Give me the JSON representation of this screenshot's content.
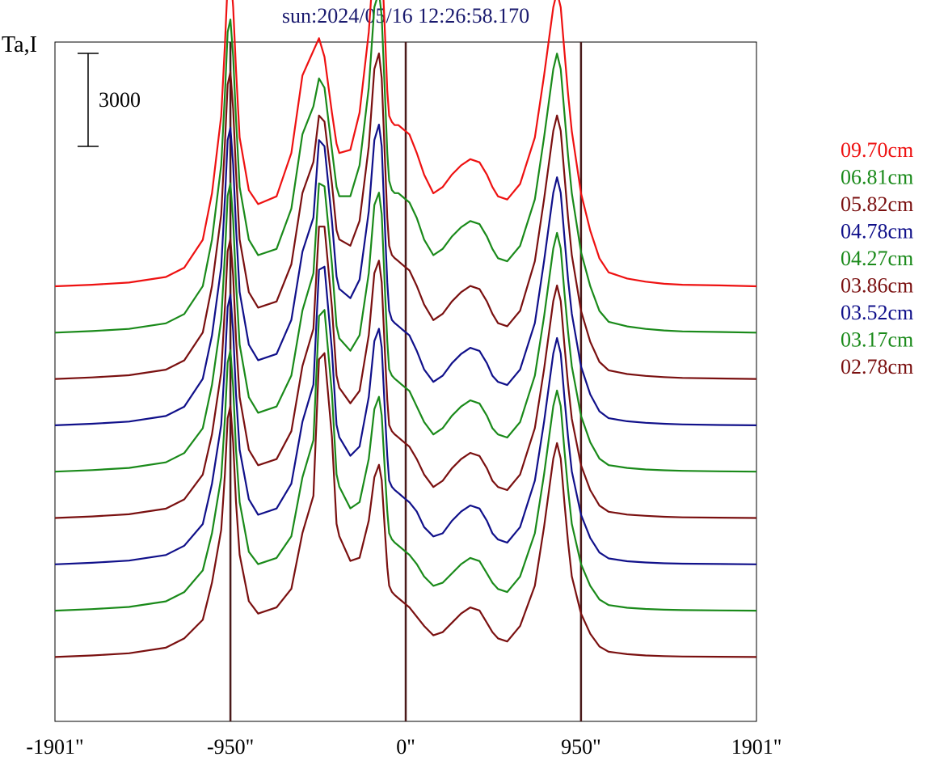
{
  "chart_data": {
    "type": "line",
    "title": "sun:2024/05/16 12:26:58.170",
    "ylabel": "Ta,I",
    "scale_bar_label": "3000",
    "x_ticks": [
      "-1901\"",
      "-950\"",
      "0\"",
      "950\"",
      "1901\""
    ],
    "x_range": [
      -1901,
      1901
    ],
    "x_guides": [
      -950,
      0,
      950
    ],
    "x": [
      -1901,
      -1700,
      -1500,
      -1300,
      -1200,
      -1100,
      -1050,
      -1000,
      -980,
      -965,
      -950,
      -935,
      -920,
      -900,
      -850,
      -800,
      -700,
      -620,
      -560,
      -500,
      -470,
      -440,
      -400,
      -375,
      -360,
      -300,
      -250,
      -200,
      -170,
      -145,
      -130,
      -110,
      -100,
      -90,
      -75,
      -60,
      -40,
      -20,
      0,
      20,
      60,
      100,
      150,
      200,
      250,
      300,
      350,
      400,
      440,
      470,
      500,
      550,
      620,
      700,
      750,
      800,
      820,
      840,
      860,
      880,
      900,
      950,
      1000,
      1050,
      1100,
      1200,
      1300,
      1400,
      1500,
      1700,
      1901
    ],
    "series": [
      {
        "name": "09.70cm",
        "color": "#ee1111",
        "values": [
          0,
          50,
          120,
          300,
          600,
          1500,
          3000,
          5500,
          7800,
          9800,
          10200,
          9000,
          7000,
          4800,
          3100,
          2650,
          2900,
          4300,
          6800,
          7600,
          8000,
          7400,
          5600,
          4600,
          4300,
          4400,
          5600,
          8200,
          10800,
          11400,
          10600,
          7800,
          6300,
          5500,
          5300,
          5200,
          5200,
          5100,
          5000,
          4900,
          4300,
          3600,
          3000,
          3200,
          3600,
          3900,
          4100,
          4000,
          3600,
          3200,
          2900,
          2800,
          3300,
          4800,
          6800,
          9000,
          9500,
          9000,
          7600,
          6200,
          5000,
          3000,
          1800,
          900,
          450,
          250,
          150,
          80,
          50,
          30,
          0
        ]
      },
      {
        "name": "06.81cm",
        "color": "#1a8a1a",
        "values": [
          0,
          50,
          120,
          300,
          600,
          1500,
          3000,
          5400,
          7700,
          9700,
          10100,
          8900,
          6900,
          4700,
          3000,
          2500,
          2700,
          4000,
          6400,
          7300,
          8200,
          7900,
          5900,
          4700,
          4400,
          4400,
          5400,
          7900,
          10500,
          11000,
          10200,
          7300,
          5800,
          4900,
          4600,
          4500,
          4500,
          4400,
          4300,
          4200,
          3700,
          3000,
          2500,
          2700,
          3100,
          3400,
          3600,
          3500,
          3100,
          2700,
          2400,
          2300,
          2800,
          4300,
          6300,
          8500,
          9000,
          8500,
          7100,
          5700,
          4500,
          2600,
          1500,
          700,
          350,
          200,
          120,
          70,
          40,
          20,
          0
        ]
      },
      {
        "name": "05.82cm",
        "color": "#7a1010",
        "values": [
          0,
          50,
          120,
          300,
          600,
          1500,
          3000,
          5300,
          7600,
          9500,
          9900,
          8700,
          6700,
          4500,
          2800,
          2300,
          2500,
          3700,
          6000,
          7000,
          8500,
          8300,
          6300,
          4800,
          4500,
          4300,
          5100,
          7500,
          10000,
          10500,
          9700,
          6700,
          5200,
          4300,
          4000,
          3900,
          3800,
          3700,
          3600,
          3500,
          3000,
          2400,
          1900,
          2100,
          2500,
          2800,
          3000,
          2900,
          2500,
          2100,
          1800,
          1700,
          2200,
          3800,
          5800,
          8000,
          8500,
          8000,
          6600,
          5200,
          4000,
          2200,
          1200,
          550,
          280,
          160,
          100,
          60,
          35,
          15,
          0
        ]
      },
      {
        "name": "04.78cm",
        "color": "#10108a",
        "values": [
          0,
          50,
          120,
          300,
          600,
          1500,
          2900,
          5100,
          7300,
          9200,
          9600,
          8400,
          6400,
          4300,
          2600,
          2100,
          2300,
          3400,
          5600,
          6700,
          9200,
          9000,
          6600,
          4800,
          4400,
          4100,
          4700,
          6900,
          9200,
          9700,
          9000,
          6000,
          4600,
          3700,
          3400,
          3300,
          3200,
          3100,
          3000,
          2900,
          2400,
          1800,
          1400,
          1600,
          2000,
          2300,
          2500,
          2400,
          2000,
          1600,
          1400,
          1300,
          1800,
          3300,
          5300,
          7500,
          8000,
          7500,
          6100,
          4700,
          3600,
          1900,
          1000,
          450,
          230,
          130,
          80,
          50,
          30,
          10,
          0
        ]
      },
      {
        "name": "04.27cm",
        "color": "#1a8a1a",
        "values": [
          0,
          50,
          120,
          300,
          600,
          1400,
          2800,
          4900,
          7000,
          8900,
          9300,
          8100,
          6100,
          4100,
          2400,
          1900,
          2100,
          3100,
          5200,
          6400,
          9300,
          9200,
          6700,
          4700,
          4300,
          3900,
          4400,
          6400,
          8600,
          9000,
          8300,
          5500,
          4200,
          3300,
          3100,
          3000,
          2900,
          2800,
          2700,
          2600,
          2100,
          1600,
          1200,
          1400,
          1800,
          2100,
          2300,
          2200,
          1800,
          1400,
          1200,
          1100,
          1600,
          3100,
          5000,
          7200,
          7700,
          7200,
          5800,
          4500,
          3400,
          1800,
          950,
          420,
          210,
          120,
          70,
          45,
          25,
          10,
          0
        ]
      },
      {
        "name": "03.86cm",
        "color": "#7a1010",
        "values": [
          0,
          50,
          120,
          300,
          600,
          1400,
          2700,
          4700,
          6800,
          8600,
          9000,
          7800,
          5800,
          3900,
          2200,
          1700,
          1900,
          2800,
          4900,
          6100,
          9400,
          9400,
          6800,
          4600,
          4200,
          3700,
          4100,
          5900,
          7900,
          8300,
          7600,
          5000,
          3800,
          3000,
          2800,
          2700,
          2600,
          2500,
          2400,
          2300,
          1900,
          1400,
          1000,
          1200,
          1600,
          1900,
          2100,
          2000,
          1600,
          1200,
          1000,
          900,
          1400,
          2900,
          4800,
          7000,
          7500,
          7000,
          5600,
          4300,
          3200,
          1700,
          900,
          400,
          200,
          110,
          70,
          40,
          20,
          10,
          0
        ]
      },
      {
        "name": "03.52cm",
        "color": "#10108a",
        "values": [
          0,
          50,
          120,
          300,
          600,
          1300,
          2600,
          4500,
          6500,
          8300,
          8700,
          7500,
          5500,
          3700,
          2100,
          1600,
          1800,
          2600,
          4600,
          5800,
          9500,
          9600,
          6900,
          4500,
          4100,
          3500,
          3800,
          5400,
          7200,
          7600,
          7000,
          4600,
          3500,
          2700,
          2500,
          2400,
          2300,
          2200,
          2100,
          2000,
          1700,
          1200,
          900,
          1000,
          1400,
          1700,
          1900,
          1800,
          1400,
          1000,
          800,
          700,
          1200,
          2700,
          4600,
          6800,
          7300,
          6800,
          5400,
          4100,
          3000,
          1600,
          850,
          380,
          190,
          100,
          60,
          35,
          20,
          10,
          0
        ]
      },
      {
        "name": "03.17cm",
        "color": "#1a8a1a",
        "values": [
          0,
          50,
          120,
          300,
          600,
          1300,
          2500,
          4300,
          6200,
          8000,
          8400,
          7200,
          5200,
          3500,
          1900,
          1500,
          1700,
          2400,
          4300,
          5500,
          9500,
          9700,
          7000,
          4400,
          4000,
          3300,
          3500,
          4900,
          6500,
          6900,
          6300,
          4200,
          3200,
          2500,
          2300,
          2200,
          2100,
          2000,
          1900,
          1800,
          1500,
          1100,
          800,
          900,
          1200,
          1500,
          1700,
          1600,
          1200,
          900,
          700,
          600,
          1100,
          2500,
          4400,
          6600,
          7100,
          6600,
          5200,
          3900,
          2800,
          1500,
          800,
          360,
          180,
          95,
          55,
          30,
          18,
          8,
          0
        ]
      },
      {
        "name": "02.78cm",
        "color": "#7a1010",
        "values": [
          0,
          50,
          120,
          300,
          600,
          1200,
          2400,
          4100,
          5900,
          7700,
          8100,
          6900,
          5000,
          3300,
          1800,
          1400,
          1600,
          2200,
          4000,
          5200,
          9600,
          9800,
          7100,
          4300,
          3900,
          3100,
          3200,
          4400,
          5800,
          6200,
          5700,
          3800,
          2900,
          2300,
          2100,
          2000,
          1900,
          1800,
          1700,
          1600,
          1300,
          1000,
          700,
          800,
          1100,
          1400,
          1600,
          1500,
          1100,
          800,
          600,
          500,
          1000,
          2300,
          4200,
          6400,
          6900,
          6400,
          5000,
          3700,
          2600,
          1400,
          750,
          340,
          170,
          90,
          50,
          28,
          16,
          7,
          0
        ]
      }
    ]
  }
}
